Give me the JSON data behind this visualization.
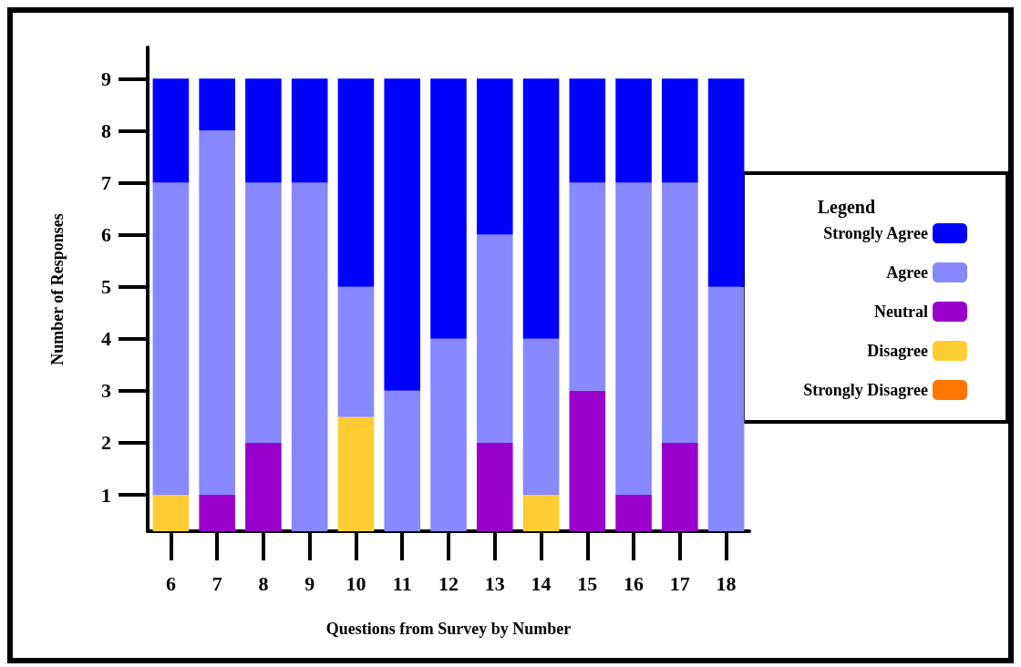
{
  "chart_data": {
    "type": "bar",
    "stacked": true,
    "xlabel": "Questions from Survey by Number",
    "ylabel": "Number of Responses",
    "legend_title": "Legend",
    "legend": "right",
    "categories": [
      "6",
      "7",
      "8",
      "9",
      "10",
      "11",
      "12",
      "13",
      "14",
      "15",
      "16",
      "17",
      "18"
    ],
    "ylim": [
      0.3,
      9.6
    ],
    "yticks": [
      1,
      2,
      3,
      4,
      5,
      6,
      7,
      8,
      9
    ],
    "series": [
      {
        "name": "Strongly Disagree",
        "color": "#ff7700",
        "values": [
          null,
          null,
          null,
          null,
          null,
          null,
          null,
          null,
          null,
          null,
          null,
          null,
          null
        ]
      },
      {
        "name": "Disagree",
        "color": "#ffcc33",
        "values": [
          1,
          null,
          null,
          null,
          2.5,
          null,
          null,
          null,
          1,
          null,
          null,
          null,
          null
        ]
      },
      {
        "name": "Neutral",
        "color": "#9900cc",
        "values": [
          null,
          1,
          2,
          null,
          null,
          null,
          null,
          2,
          null,
          3,
          1,
          2,
          null
        ]
      },
      {
        "name": "Agree",
        "color": "#8888ff",
        "values": [
          6,
          7,
          5,
          7,
          2.5,
          3,
          4,
          4,
          3,
          4,
          6,
          5,
          5
        ]
      },
      {
        "name": "Strongly Agree",
        "color": "#0000ff",
        "values": [
          2,
          1,
          2,
          2,
          4,
          6,
          5,
          3,
          5,
          2,
          2,
          2,
          4
        ]
      }
    ]
  }
}
